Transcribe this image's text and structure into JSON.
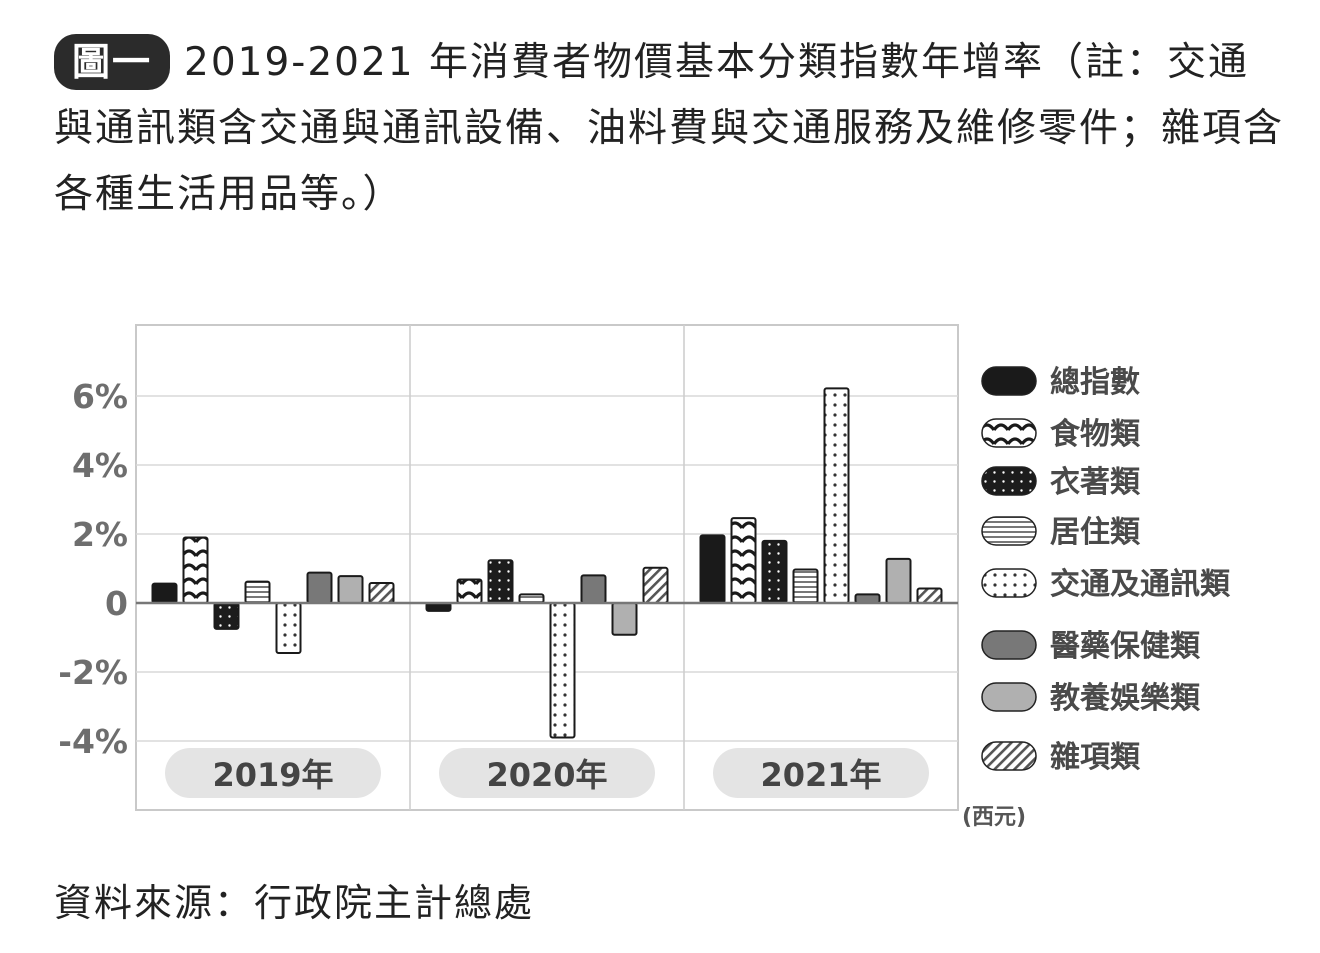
{
  "figure": {
    "badge": "圖一",
    "title": "2019-2021 年消費者物價基本分類指數年增率（註：交通與通訊類含交通與通訊設備、油料費與交通服務及維修零件；雜項含各種生活用品等。）",
    "source": "資料來源：行政院主計總處"
  },
  "chart_data": {
    "type": "bar",
    "categories": [
      "2019年",
      "2020年",
      "2021年"
    ],
    "series": [
      {
        "name": "總指數",
        "values": [
          0.56,
          -0.23,
          1.96
        ],
        "color": "#1a1a1a",
        "pattern": "solid-black"
      },
      {
        "name": "食物類",
        "values": [
          1.9,
          0.68,
          2.46
        ],
        "color": "#1a1a1a",
        "pattern": "wave"
      },
      {
        "name": "衣著類",
        "values": [
          -0.75,
          1.24,
          1.8
        ],
        "color": "#1a1a1a",
        "pattern": "dots-dark"
      },
      {
        "name": "居住類",
        "values": [
          0.62,
          0.25,
          0.97
        ],
        "color": "#cfcfcf",
        "pattern": "horizontal-lines"
      },
      {
        "name": "交通及通訊類",
        "values": [
          -1.45,
          -3.9,
          6.22
        ],
        "color": "#ffffff",
        "pattern": "dots-light"
      },
      {
        "name": "醫藥保健類",
        "values": [
          0.88,
          0.8,
          0.25
        ],
        "color": "#7a7a7a",
        "pattern": "solid-dark-gray"
      },
      {
        "name": "教養娛樂類",
        "values": [
          0.78,
          -0.92,
          1.28
        ],
        "color": "#b3b3b3",
        "pattern": "solid-light-gray"
      },
      {
        "name": "雜項類",
        "values": [
          0.58,
          1.02,
          0.42
        ],
        "color": "#ffffff",
        "pattern": "diagonal-lines"
      }
    ],
    "ylim": [
      -6,
      8
    ],
    "yticks": [
      6,
      4,
      2,
      0,
      -2,
      -4
    ],
    "ytick_labels": [
      "6%",
      "4%",
      "2%",
      "0",
      "-2%",
      "-4%"
    ],
    "unit_label": "(西元)",
    "grid": true,
    "legend_position": "right"
  }
}
